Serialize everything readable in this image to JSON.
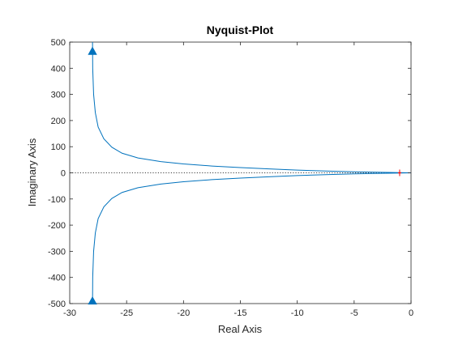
{
  "chart_data": {
    "type": "line",
    "title": "Nyquist-Plot",
    "xlabel": "Real Axis",
    "ylabel": "Imaginary Axis",
    "xlim": [
      -30,
      0
    ],
    "ylim": [
      -500,
      500
    ],
    "xticks": [
      -30,
      -25,
      -20,
      -15,
      -10,
      -5,
      0
    ],
    "yticks": [
      -500,
      -400,
      -300,
      -200,
      -100,
      0,
      100,
      200,
      300,
      400,
      500
    ],
    "grid": false,
    "legend": "none",
    "colors": {
      "curve": "#0072BD",
      "critical_point": "#FF0000",
      "axes": "#262626",
      "zero_line": "#000000"
    },
    "critical_point": {
      "x": -1,
      "y": 0
    },
    "series": [
      {
        "x": [
          -28,
          -27.98,
          -27.9,
          -27.75,
          -27.5,
          -27.0,
          -26.3,
          -25.4,
          -24.0,
          -22.0,
          -20.0,
          -17.5,
          -15.0,
          -12.5,
          -10.0,
          -7.5,
          -5.0,
          -3.0,
          -1.5,
          -0.5,
          0
        ],
        "y": [
          520,
          400,
          300,
          230,
          175,
          130,
          98,
          75,
          57,
          43,
          34,
          26,
          20,
          15,
          10.5,
          7,
          4,
          2.2,
          1,
          0.3,
          0
        ]
      },
      {
        "x": [
          -28,
          -27.98,
          -27.9,
          -27.75,
          -27.5,
          -27.0,
          -26.3,
          -25.4,
          -24.0,
          -22.0,
          -20.0,
          -17.5,
          -15.0,
          -12.5,
          -10.0,
          -7.5,
          -5.0,
          -3.0,
          -1.5,
          -0.5,
          0
        ],
        "y": [
          -520,
          -400,
          -300,
          -230,
          -175,
          -130,
          -98,
          -75,
          -57,
          -43,
          -34,
          -26,
          -20,
          -15,
          -10.5,
          -7,
          -4,
          -2.2,
          -1,
          -0.3,
          0
        ]
      }
    ],
    "arrows": [
      {
        "x": -28,
        "y": 465,
        "direction": "up"
      },
      {
        "x": -28,
        "y": -490,
        "direction": "up"
      }
    ]
  }
}
